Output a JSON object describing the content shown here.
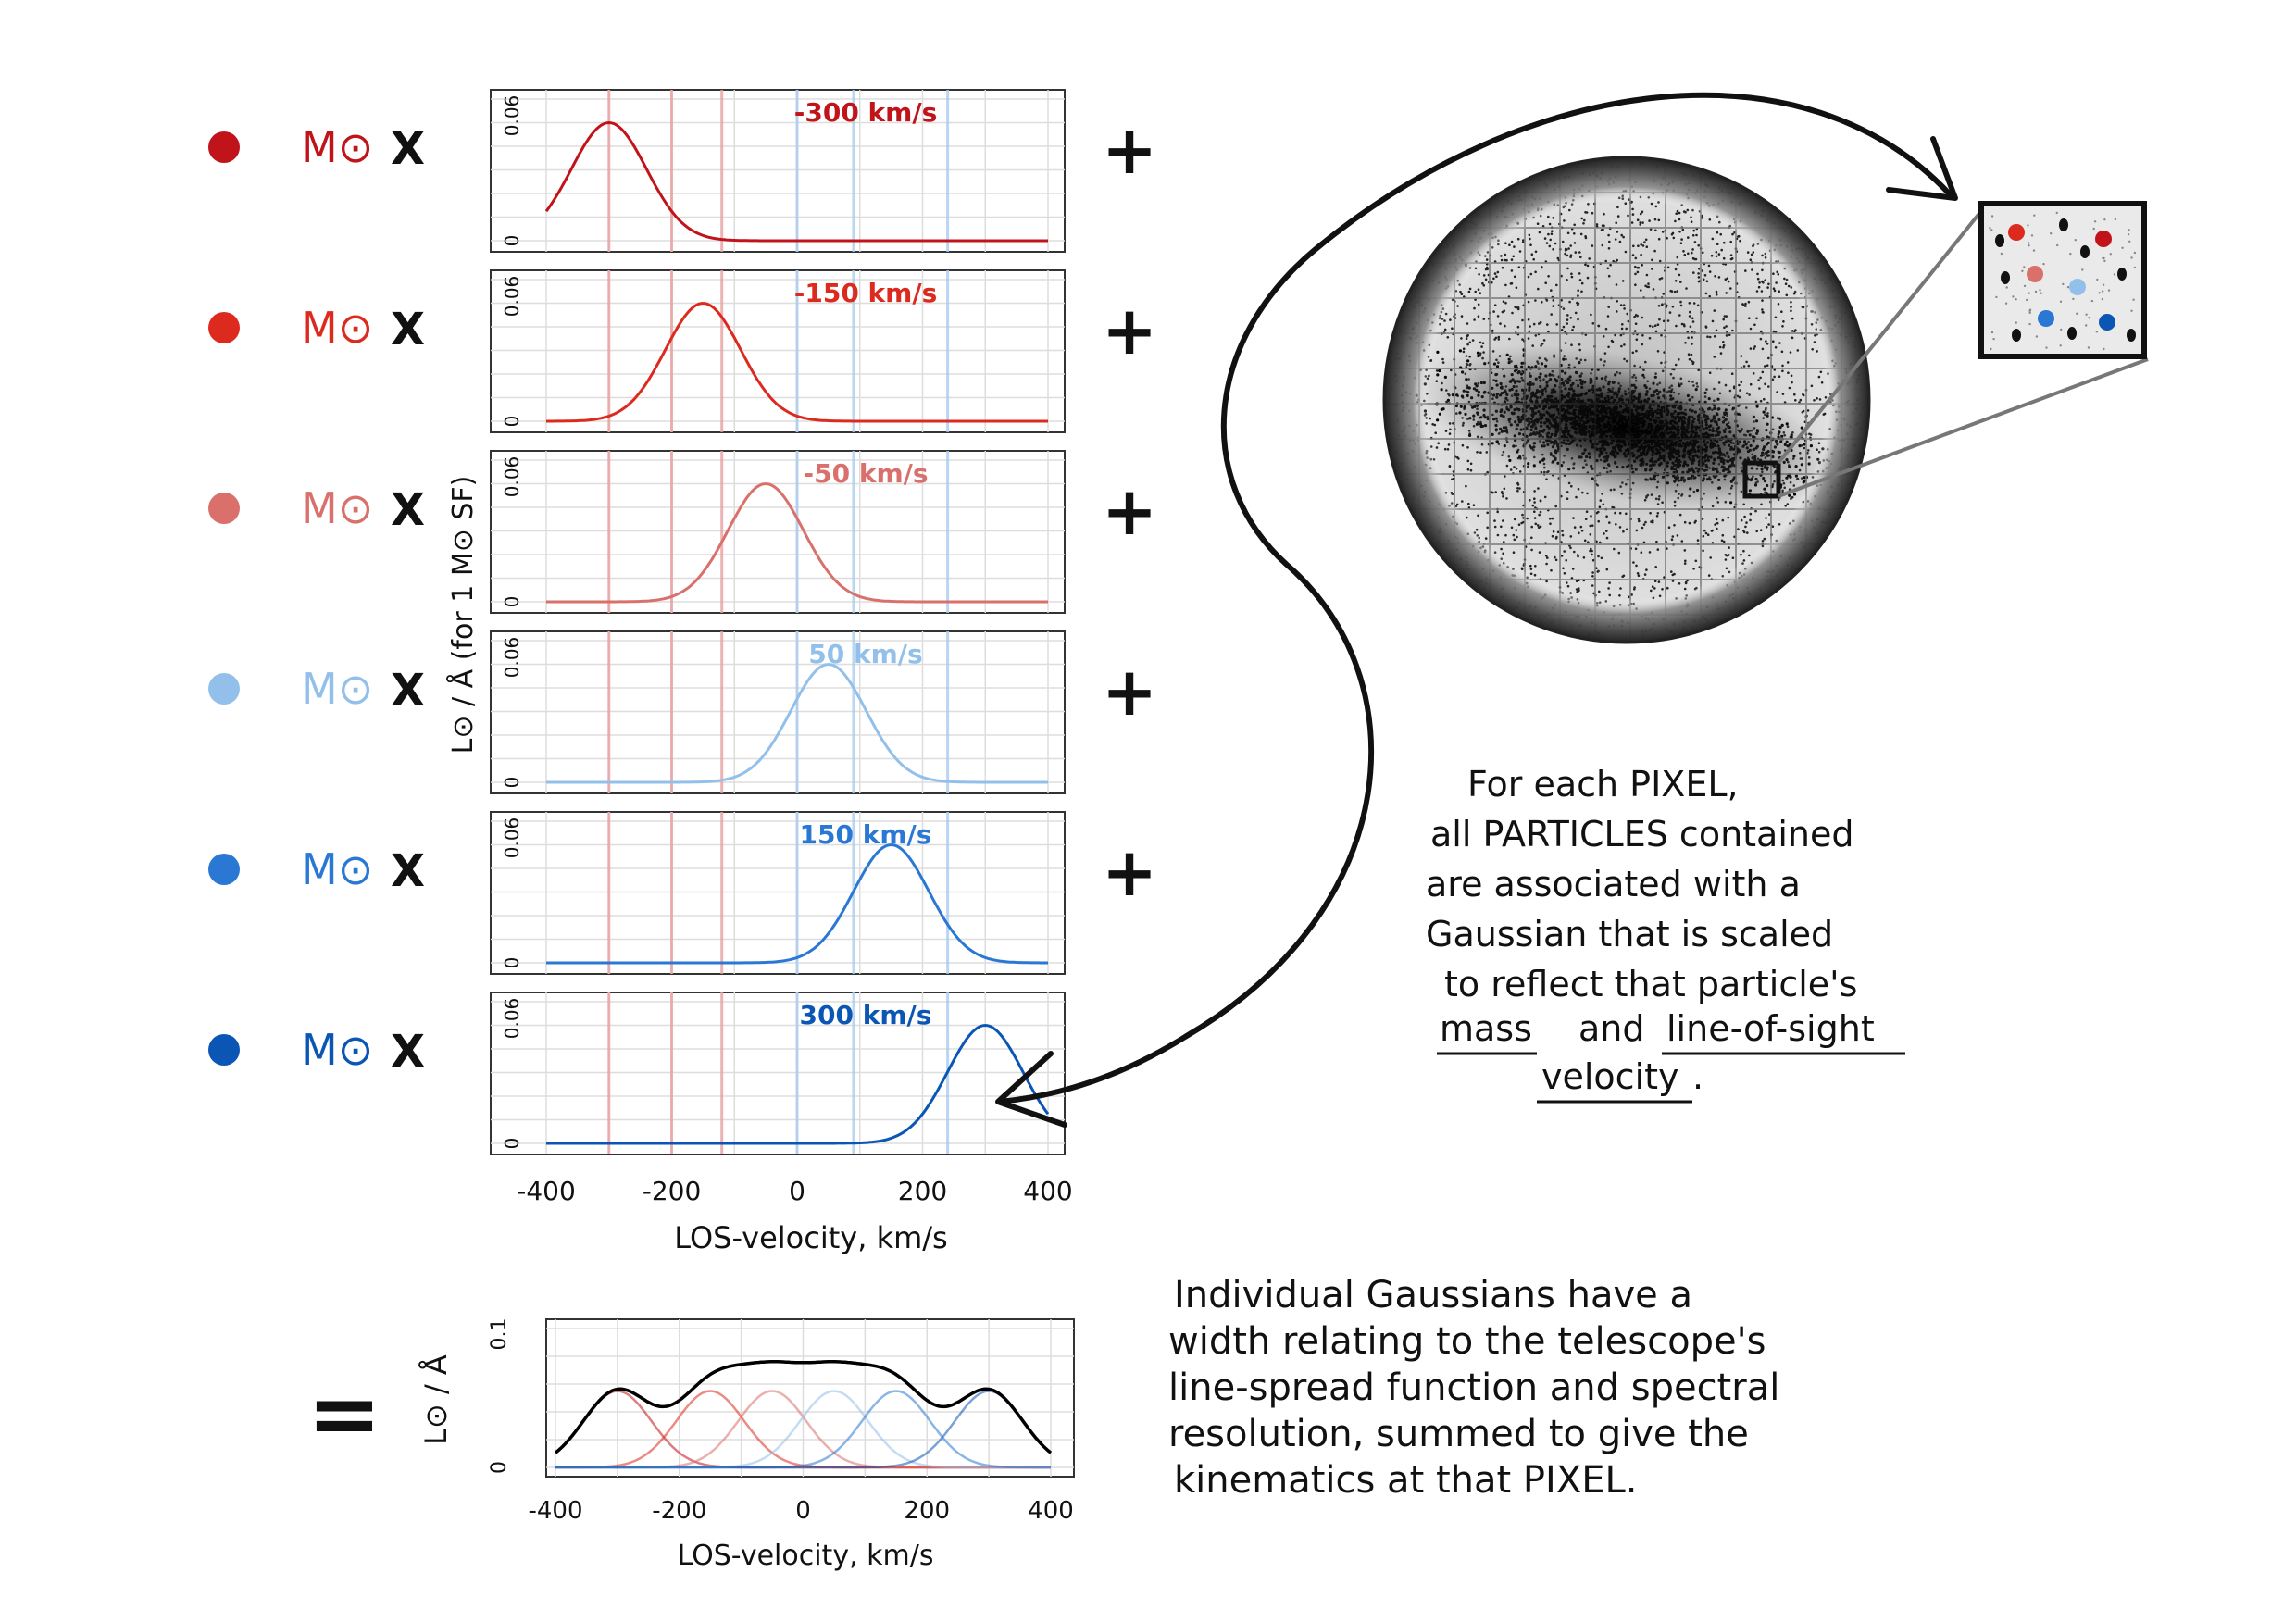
{
  "colors": {
    "red_dark": "#c0141a",
    "red": "#dd2a1f",
    "red_light": "#d9706c",
    "blue_light": "#93c0ea",
    "blue": "#2a78d4",
    "blue_dark": "#0b56b5",
    "sum_line": "#000000",
    "grid": "#dddddd"
  },
  "rows": [
    {
      "label": "-300 km/s",
      "velocity": -300,
      "color": "#c0141a",
      "mass_symbol": "M⊙",
      "times": "X",
      "op": "+"
    },
    {
      "label": "-150 km/s",
      "velocity": -150,
      "color": "#dd2a1f",
      "mass_symbol": "M⊙",
      "times": "X",
      "op": "+"
    },
    {
      "label": "-50 km/s",
      "velocity": -50,
      "color": "#d9706c",
      "mass_symbol": "M⊙",
      "times": "X",
      "op": "+"
    },
    {
      "label": "50 km/s",
      "velocity": 50,
      "color": "#93c0ea",
      "mass_symbol": "M⊙",
      "times": "X",
      "op": "+"
    },
    {
      "label": "150 km/s",
      "velocity": 150,
      "color": "#2a78d4",
      "mass_symbol": "M⊙",
      "times": "X",
      "op": "+"
    },
    {
      "label": "300 km/s",
      "velocity": 300,
      "color": "#0b56b5",
      "mass_symbol": "M⊙",
      "times": "X",
      "op": ""
    }
  ],
  "chart_data": [
    {
      "type": "line",
      "title": "",
      "xlabel": "LOS-velocity, km/s",
      "ylabel": "L⊙ / Å  (for 1 M⊙ SF)",
      "xlim": [
        -400,
        400
      ],
      "ylim": [
        0,
        0.06
      ],
      "xticks": [
        "-400",
        "-200",
        "0",
        "200",
        "400"
      ],
      "yticks": [
        "0",
        "0.06"
      ],
      "gaussian_sigma": 60,
      "gaussian_peak": 0.05,
      "series": [
        {
          "name": "-300 km/s",
          "mean": -300
        },
        {
          "name": "-150 km/s",
          "mean": -150
        },
        {
          "name": "-50 km/s",
          "mean": -50
        },
        {
          "name": "50 km/s",
          "mean": 50
        },
        {
          "name": "150 km/s",
          "mean": 150
        },
        {
          "name": "300 km/s",
          "mean": 300
        }
      ],
      "vertical_lines": [
        -300,
        -200,
        -120,
        0,
        90,
        240
      ]
    },
    {
      "type": "line",
      "title": "",
      "xlabel": "LOS-velocity, km/s",
      "ylabel": "L⊙ / Å",
      "xlim": [
        -400,
        400
      ],
      "ylim": [
        0,
        0.1
      ],
      "xticks": [
        "-400",
        "-200",
        "0",
        "200",
        "400"
      ],
      "yticks": [
        "0",
        "0.1"
      ],
      "series": [
        {
          "name": "-300 km/s",
          "mean": -300
        },
        {
          "name": "-150 km/s",
          "mean": -150
        },
        {
          "name": "-50 km/s",
          "mean": -50
        },
        {
          "name": "50 km/s",
          "mean": 50
        },
        {
          "name": "150 km/s",
          "mean": 150
        },
        {
          "name": "300 km/s",
          "mean": 300
        },
        {
          "name": "",
          "type": "sum"
        }
      ]
    }
  ],
  "equals_sign": "=",
  "note_pixel": {
    "lines": [
      "For each PIXEL,",
      "all PARTICLES contained",
      "are associated with a",
      "Gaussian that is scaled",
      "to reflect that particle's"
    ],
    "underline_1": "mass",
    "and": "and",
    "underline_2": "line-of-sight",
    "underline_3": "velocity",
    "period": "."
  },
  "note_gaussians": {
    "lines": [
      "Individual Gaussians have a",
      "width relating to the telescope's",
      "line-spread function and spectral",
      "resolution, summed to give the",
      "kinematics at that PIXEL."
    ]
  }
}
